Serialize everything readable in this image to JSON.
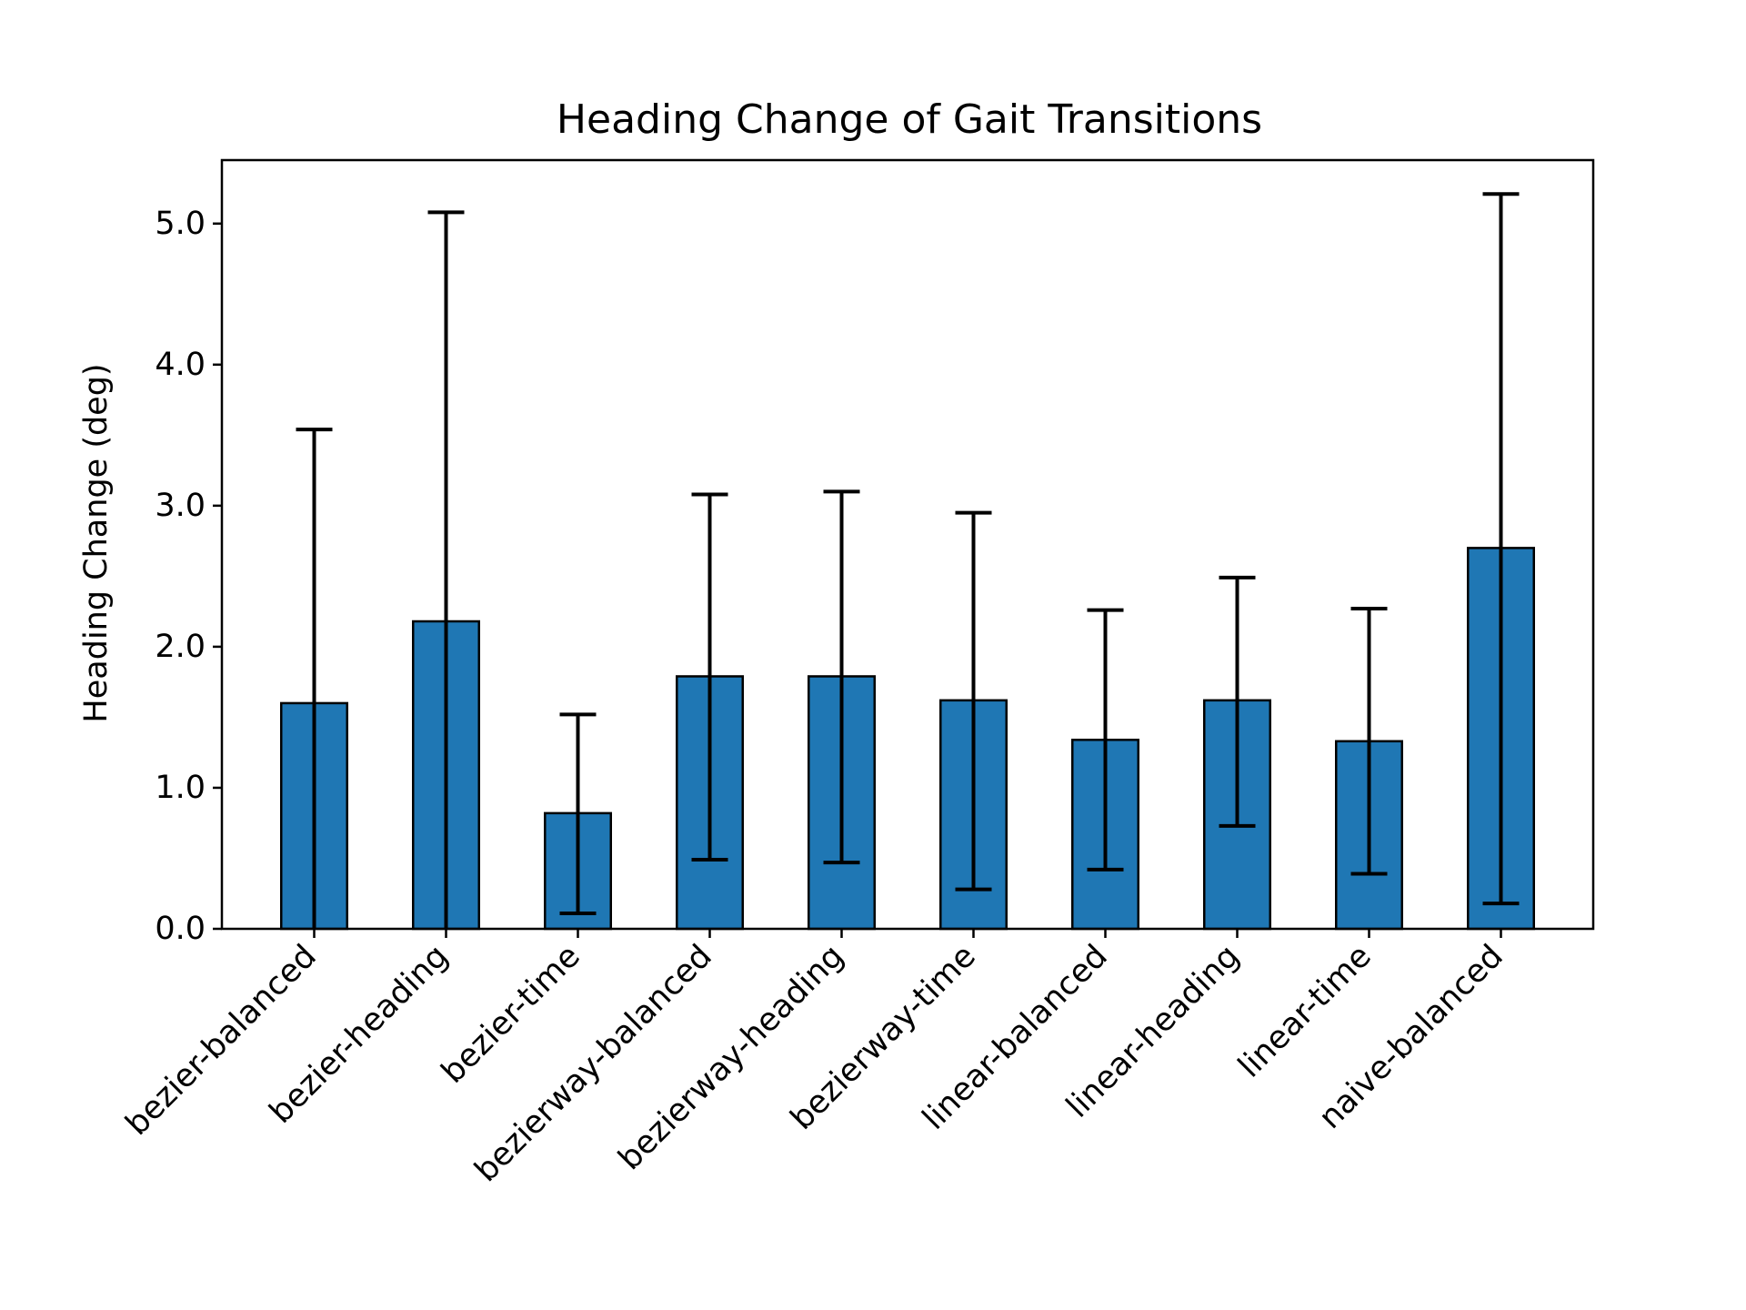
{
  "chart_data": {
    "type": "bar",
    "title": "Heading Change of Gait Transitions",
    "xlabel": "",
    "ylabel": "Heading Change (deg)",
    "ylim": [
      0,
      5.45
    ],
    "yticks": [
      0.0,
      1.0,
      2.0,
      3.0,
      4.0,
      5.0
    ],
    "ytick_labels": [
      "0.0",
      "1.0",
      "2.0",
      "3.0",
      "4.0",
      "5.0"
    ],
    "categories": [
      "bezier-balanced",
      "bezier-heading",
      "bezier-time",
      "bezierway-balanced",
      "bezierway-heading",
      "bezierway-time",
      "linear-balanced",
      "linear-heading",
      "linear-time",
      "naive-balanced"
    ],
    "values": [
      1.6,
      2.18,
      0.82,
      1.79,
      1.79,
      1.62,
      1.34,
      1.62,
      1.33,
      2.7
    ],
    "error_low": [
      0.0,
      0.0,
      0.11,
      0.49,
      0.47,
      0.28,
      0.42,
      0.73,
      0.39,
      0.18
    ],
    "error_high": [
      3.54,
      5.08,
      1.52,
      3.08,
      3.1,
      2.95,
      2.26,
      2.49,
      2.27,
      5.21
    ],
    "grid": false,
    "bar_color": "#1f77b4",
    "edge_color": "#000000",
    "errorbar_color": "#000000"
  }
}
